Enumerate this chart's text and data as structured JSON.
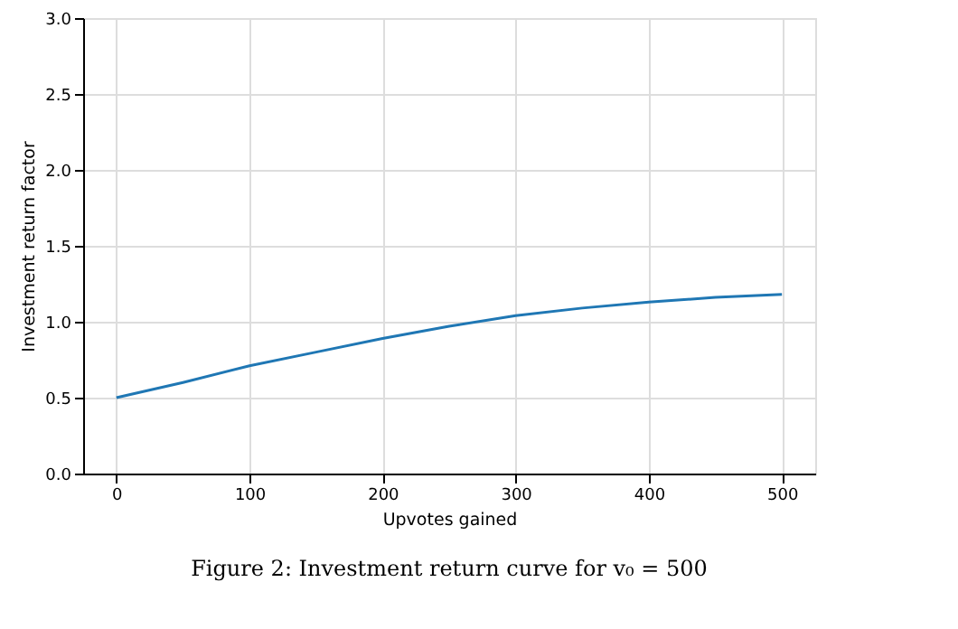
{
  "chart_data": {
    "type": "line",
    "xlabel": "Upvotes gained",
    "ylabel": "Investment return factor",
    "x": [
      0,
      50,
      100,
      150,
      200,
      250,
      300,
      350,
      400,
      450,
      500
    ],
    "series": [
      {
        "color": "#1f77b4",
        "values": [
          0.5,
          0.6,
          0.71,
          0.8,
          0.89,
          0.97,
          1.04,
          1.09,
          1.13,
          1.16,
          1.18
        ]
      }
    ],
    "xlim": [
      -25,
      525
    ],
    "xticks": [
      0,
      100,
      200,
      300,
      400,
      500
    ],
    "ylim": [
      0,
      3
    ],
    "yticks": [
      {
        "value": 0,
        "label": "0.0"
      },
      {
        "value": 0.5,
        "label": "0.5"
      },
      {
        "value": 1,
        "label": "1.0"
      },
      {
        "value": 1.5,
        "label": "1.5"
      },
      {
        "value": 2,
        "label": "2.0"
      },
      {
        "value": 2.5,
        "label": "2.5"
      },
      {
        "value": 3,
        "label": "3.0"
      }
    ],
    "grid": true,
    "annotations": [
      "Figure 2:   Investment return curve for v₀ = 500"
    ]
  }
}
